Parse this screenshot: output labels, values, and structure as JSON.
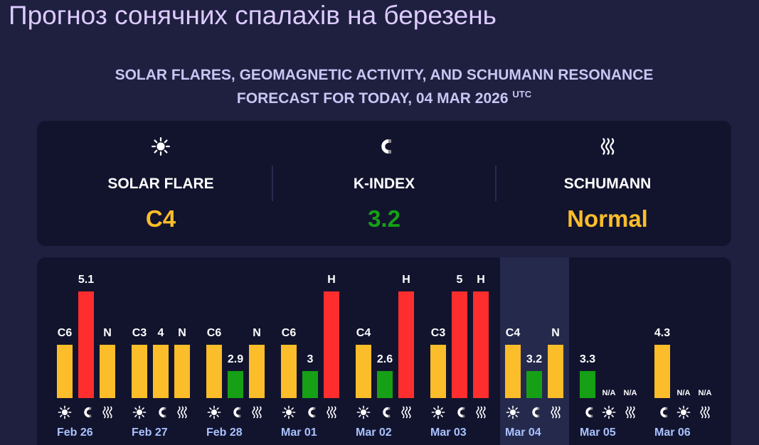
{
  "header": {
    "title": "Прогноз сонячних спалахів на березень"
  },
  "subtitle": {
    "line1": "SOLAR FLARES, GEOMAGNETIC ACTIVITY, AND SCHUMANN RESONANCE",
    "line2": "FORECAST FOR TODAY, 04 MAR 2026",
    "sup": "UTC"
  },
  "summary": [
    {
      "icon": "sun",
      "label": "SOLAR FLARE",
      "value": "C4",
      "color": "#fbbd2a"
    },
    {
      "icon": "magnet",
      "label": "K-INDEX",
      "value": "3.2",
      "color": "#16a016"
    },
    {
      "icon": "waves",
      "label": "SCHUMANN",
      "value": "Normal",
      "color": "#fbbd2a"
    }
  ],
  "days": [
    {
      "date": "Feb 26",
      "bars": [
        {
          "icon": "sun",
          "label": "C6",
          "color": "#fbbd2a"
        },
        {
          "icon": "magnet",
          "label": "5.1",
          "color": "#ff2e2e"
        },
        {
          "icon": "waves",
          "label": "N",
          "color": "#fbbd2a"
        }
      ]
    },
    {
      "date": "Feb 27",
      "bars": [
        {
          "icon": "sun",
          "label": "C3",
          "color": "#fbbd2a"
        },
        {
          "icon": "magnet",
          "label": "4",
          "color": "#fbbd2a"
        },
        {
          "icon": "waves",
          "label": "N",
          "color": "#fbbd2a"
        }
      ]
    },
    {
      "date": "Feb 28",
      "bars": [
        {
          "icon": "sun",
          "label": "C6",
          "color": "#fbbd2a"
        },
        {
          "icon": "magnet",
          "label": "2.9",
          "color": "#16a016"
        },
        {
          "icon": "waves",
          "label": "N",
          "color": "#fbbd2a"
        }
      ]
    },
    {
      "date": "Mar 01",
      "bars": [
        {
          "icon": "sun",
          "label": "C6",
          "color": "#fbbd2a"
        },
        {
          "icon": "magnet",
          "label": "3",
          "color": "#16a016"
        },
        {
          "icon": "waves",
          "label": "H",
          "color": "#ff2e2e"
        }
      ]
    },
    {
      "date": "Mar 02",
      "bars": [
        {
          "icon": "sun",
          "label": "C4",
          "color": "#fbbd2a"
        },
        {
          "icon": "magnet",
          "label": "2.6",
          "color": "#16a016"
        },
        {
          "icon": "waves",
          "label": "H",
          "color": "#ff2e2e"
        }
      ]
    },
    {
      "date": "Mar 03",
      "bars": [
        {
          "icon": "sun",
          "label": "C3",
          "color": "#fbbd2a"
        },
        {
          "icon": "magnet",
          "label": "5",
          "color": "#ff2e2e"
        },
        {
          "icon": "waves",
          "label": "H",
          "color": "#ff2e2e"
        }
      ]
    },
    {
      "date": "Mar 04",
      "today": true,
      "bars": [
        {
          "icon": "sun",
          "label": "C4",
          "color": "#fbbd2a"
        },
        {
          "icon": "magnet",
          "label": "3.2",
          "color": "#16a016"
        },
        {
          "icon": "waves",
          "label": "N",
          "color": "#fbbd2a"
        }
      ]
    },
    {
      "date": "Mar 05",
      "bars": [
        {
          "icon": "magnet",
          "label": "3.3",
          "color": "#16a016"
        },
        {
          "icon": "sun",
          "label": "N/A"
        },
        {
          "icon": "waves",
          "label": "N/A"
        }
      ]
    },
    {
      "date": "Mar 06",
      "bars": [
        {
          "icon": "magnet",
          "label": "4.3",
          "color": "#fbbd2a"
        },
        {
          "icon": "sun",
          "label": "N/A"
        },
        {
          "icon": "waves",
          "label": "N/A"
        }
      ]
    }
  ]
}
